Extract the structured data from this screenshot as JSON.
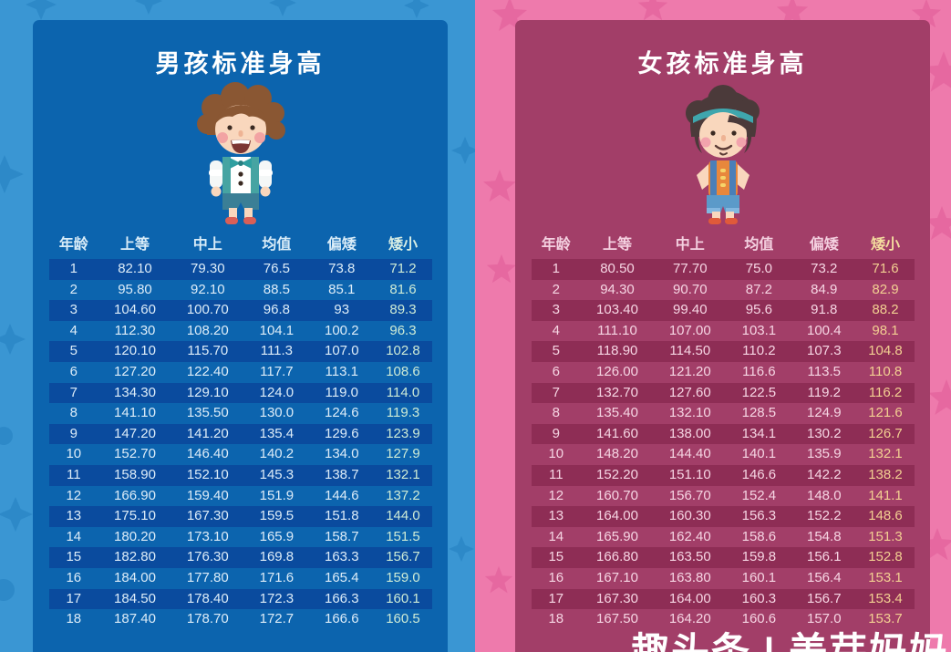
{
  "page": {
    "watermark": "趣头条 | 美芽妈妈"
  },
  "colors": {
    "boys_bg": "#3a96d3",
    "boys_panel": "#0c64ae",
    "boys_stripe": "#0a4b9e",
    "boys_short_col": "#cdebd6",
    "girls_bg": "#ee7aac",
    "girls_panel": "#a23e68",
    "girls_stripe": "#8e2d55",
    "girls_short_col": "#f3cf92"
  },
  "boys": {
    "title": "男孩标准身高",
    "columns": [
      "年龄",
      "上等",
      "中上",
      "均值",
      "偏矮",
      "矮小"
    ],
    "rows": [
      [
        "1",
        "82.10",
        "79.30",
        "76.5",
        "73.8",
        "71.2"
      ],
      [
        "2",
        "95.80",
        "92.10",
        "88.5",
        "85.1",
        "81.6"
      ],
      [
        "3",
        "104.60",
        "100.70",
        "96.8",
        "93",
        "89.3"
      ],
      [
        "4",
        "112.30",
        "108.20",
        "104.1",
        "100.2",
        "96.3"
      ],
      [
        "5",
        "120.10",
        "115.70",
        "111.3",
        "107.0",
        "102.8"
      ],
      [
        "6",
        "127.20",
        "122.40",
        "117.7",
        "113.1",
        "108.6"
      ],
      [
        "7",
        "134.30",
        "129.10",
        "124.0",
        "119.0",
        "114.0"
      ],
      [
        "8",
        "141.10",
        "135.50",
        "130.0",
        "124.6",
        "119.3"
      ],
      [
        "9",
        "147.20",
        "141.20",
        "135.4",
        "129.6",
        "123.9"
      ],
      [
        "10",
        "152.70",
        "146.40",
        "140.2",
        "134.0",
        "127.9"
      ],
      [
        "11",
        "158.90",
        "152.10",
        "145.3",
        "138.7",
        "132.1"
      ],
      [
        "12",
        "166.90",
        "159.40",
        "151.9",
        "144.6",
        "137.2"
      ],
      [
        "13",
        "175.10",
        "167.30",
        "159.5",
        "151.8",
        "144.0"
      ],
      [
        "14",
        "180.20",
        "173.10",
        "165.9",
        "158.7",
        "151.5"
      ],
      [
        "15",
        "182.80",
        "176.30",
        "169.8",
        "163.3",
        "156.7"
      ],
      [
        "16",
        "184.00",
        "177.80",
        "171.6",
        "165.4",
        "159.0"
      ],
      [
        "17",
        "184.50",
        "178.40",
        "172.3",
        "166.3",
        "160.1"
      ],
      [
        "18",
        "187.40",
        "178.70",
        "172.7",
        "166.6",
        "160.5"
      ]
    ]
  },
  "girls": {
    "title": "女孩标准身高",
    "columns": [
      "年龄",
      "上等",
      "中上",
      "均值",
      "偏矮",
      "矮小"
    ],
    "rows": [
      [
        "1",
        "80.50",
        "77.70",
        "75.0",
        "73.2",
        "71.6"
      ],
      [
        "2",
        "94.30",
        "90.70",
        "87.2",
        "84.9",
        "82.9"
      ],
      [
        "3",
        "103.40",
        "99.40",
        "95.6",
        "91.8",
        "88.2"
      ],
      [
        "4",
        "111.10",
        "107.00",
        "103.1",
        "100.4",
        "98.1"
      ],
      [
        "5",
        "118.90",
        "114.50",
        "110.2",
        "107.3",
        "104.8"
      ],
      [
        "6",
        "126.00",
        "121.20",
        "116.6",
        "113.5",
        "110.8"
      ],
      [
        "7",
        "132.70",
        "127.60",
        "122.5",
        "119.2",
        "116.2"
      ],
      [
        "8",
        "135.40",
        "132.10",
        "128.5",
        "124.9",
        "121.6"
      ],
      [
        "9",
        "141.60",
        "138.00",
        "134.1",
        "130.2",
        "126.7"
      ],
      [
        "10",
        "148.20",
        "144.40",
        "140.1",
        "135.9",
        "132.1"
      ],
      [
        "11",
        "152.20",
        "151.10",
        "146.6",
        "142.2",
        "138.2"
      ],
      [
        "12",
        "160.70",
        "156.70",
        "152.4",
        "148.0",
        "141.1"
      ],
      [
        "13",
        "164.00",
        "160.30",
        "156.3",
        "152.2",
        "148.6"
      ],
      [
        "14",
        "165.90",
        "162.40",
        "158.6",
        "154.8",
        "151.3"
      ],
      [
        "15",
        "166.80",
        "163.50",
        "159.8",
        "156.1",
        "152.8"
      ],
      [
        "16",
        "167.10",
        "163.80",
        "160.1",
        "156.4",
        "153.1"
      ],
      [
        "17",
        "167.30",
        "164.00",
        "160.3",
        "156.7",
        "153.4"
      ],
      [
        "18",
        "167.50",
        "164.20",
        "160.6",
        "157.0",
        "153.7"
      ]
    ]
  }
}
